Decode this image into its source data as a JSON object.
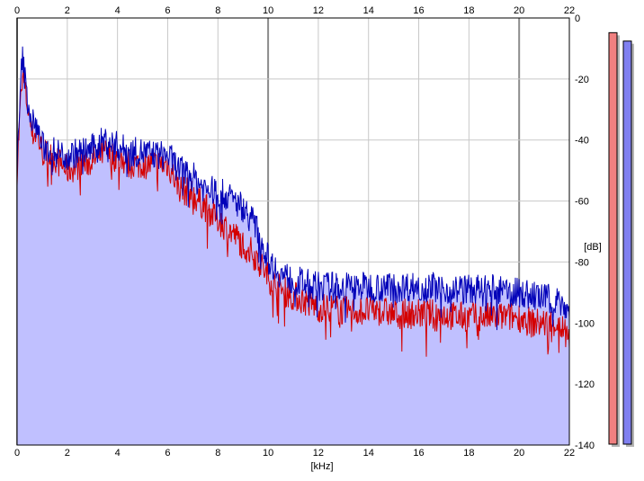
{
  "chart_data": {
    "type": "area",
    "title": "",
    "xlabel": "[kHz]",
    "ylabel": "[dB]",
    "xlim": [
      0,
      22
    ],
    "ylim": [
      -140,
      0
    ],
    "x_ticks": [
      0,
      2,
      4,
      6,
      8,
      10,
      12,
      14,
      16,
      18,
      20,
      22
    ],
    "y_ticks": [
      0,
      -20,
      -40,
      -60,
      -80,
      -100,
      -120,
      -140
    ],
    "grid": true,
    "fill_color": "#c0c0ff",
    "grid_color": "#c8c8c8",
    "major_grid_color": "#8c8c8c",
    "series": [
      {
        "color": "#d40000",
        "x": [
          0,
          0.2,
          0.4,
          0.6,
          0.8,
          1.0,
          1.5,
          2.0,
          2.5,
          3.0,
          3.5,
          4.0,
          4.5,
          5.0,
          5.5,
          6.0,
          6.5,
          7.0,
          7.5,
          8.0,
          8.5,
          9.0,
          9.5,
          10.0,
          10.5,
          11.0,
          11.5,
          12.0,
          12.5,
          13.0,
          13.5,
          14.0,
          14.5,
          15.0,
          15.5,
          16.0,
          16.5,
          17.0,
          17.5,
          18.0,
          18.5,
          19.0,
          19.5,
          20.0,
          20.5,
          21.0,
          21.5,
          22.0
        ],
        "values": [
          -50,
          -18,
          -28,
          -38,
          -38,
          -44,
          -46,
          -50,
          -48,
          -47,
          -44,
          -46,
          -48,
          -48,
          -48,
          -48,
          -56,
          -58,
          -62,
          -66,
          -70,
          -74,
          -78,
          -85,
          -89,
          -91,
          -93,
          -95,
          -95,
          -96,
          -96,
          -96,
          -96,
          -97,
          -97,
          -97,
          -97,
          -97,
          -98,
          -98,
          -98,
          -98,
          -98,
          -98,
          -100,
          -100,
          -100,
          -104
        ]
      },
      {
        "color": "#0000b8",
        "x": [
          0,
          0.2,
          0.4,
          0.6,
          0.8,
          1.0,
          1.5,
          2.0,
          2.5,
          3.0,
          3.5,
          4.0,
          4.5,
          5.0,
          5.5,
          6.0,
          6.5,
          7.0,
          7.5,
          8.0,
          8.5,
          9.0,
          9.5,
          10.0,
          10.5,
          11.0,
          11.5,
          12.0,
          12.5,
          13.0,
          13.5,
          14.0,
          14.5,
          15.0,
          15.5,
          16.0,
          16.5,
          17.0,
          17.5,
          18.0,
          18.5,
          19.0,
          19.5,
          20.0,
          20.5,
          21.0,
          21.5,
          22.0
        ],
        "values": [
          -50,
          -12,
          -26,
          -34,
          -36,
          -42,
          -44,
          -45,
          -44,
          -43,
          -40,
          -42,
          -44,
          -44,
          -45,
          -45,
          -50,
          -52,
          -56,
          -57,
          -59,
          -62,
          -68,
          -79,
          -84,
          -86,
          -87,
          -88,
          -88,
          -88,
          -88,
          -88,
          -88,
          -88,
          -88,
          -88,
          -88,
          -89,
          -89,
          -89,
          -89,
          -89,
          -90,
          -90,
          -91,
          -92,
          -92,
          -96
        ]
      }
    ],
    "meters": [
      {
        "color": "#f08080",
        "level": 0.98
      },
      {
        "color": "#8080f0",
        "level": 0.96
      }
    ]
  }
}
